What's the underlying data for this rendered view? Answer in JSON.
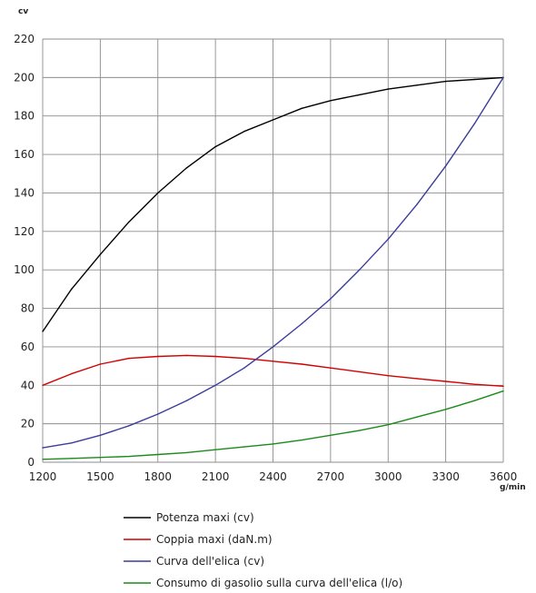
{
  "chart_data": {
    "type": "line",
    "ylabel": "cv",
    "xlabel": "g/min",
    "xlim": [
      1200,
      3600
    ],
    "ylim": [
      0,
      220
    ],
    "x_ticks": [
      1200,
      1500,
      1800,
      2100,
      2400,
      2700,
      3000,
      3300,
      3600
    ],
    "y_ticks": [
      0,
      20,
      40,
      60,
      80,
      100,
      120,
      140,
      160,
      180,
      200,
      220
    ],
    "grid": true,
    "legend_position": "bottom",
    "series": [
      {
        "name": "Potenza maxi (cv)",
        "color": "#000000",
        "points": [
          [
            1200,
            68
          ],
          [
            1350,
            90
          ],
          [
            1500,
            108
          ],
          [
            1650,
            125
          ],
          [
            1800,
            140
          ],
          [
            1950,
            153
          ],
          [
            2100,
            164
          ],
          [
            2250,
            172
          ],
          [
            2400,
            178
          ],
          [
            2550,
            184
          ],
          [
            2700,
            188
          ],
          [
            2850,
            191
          ],
          [
            3000,
            194
          ],
          [
            3150,
            196
          ],
          [
            3300,
            198
          ],
          [
            3450,
            199
          ],
          [
            3600,
            200
          ]
        ]
      },
      {
        "name": "Coppia maxi (daN.m)",
        "color": "#d40000",
        "points": [
          [
            1200,
            40
          ],
          [
            1350,
            46
          ],
          [
            1500,
            51
          ],
          [
            1650,
            54
          ],
          [
            1800,
            55
          ],
          [
            1950,
            55.5
          ],
          [
            2100,
            55
          ],
          [
            2250,
            54
          ],
          [
            2400,
            52.5
          ],
          [
            2550,
            51
          ],
          [
            2700,
            49
          ],
          [
            2850,
            47
          ],
          [
            3000,
            45
          ],
          [
            3150,
            43.5
          ],
          [
            3300,
            42
          ],
          [
            3450,
            40.5
          ],
          [
            3600,
            39.5
          ]
        ]
      },
      {
        "name": "Curva dell'elica (cv)",
        "color": "#3c3c9c",
        "points": [
          [
            1200,
            7.5
          ],
          [
            1350,
            10
          ],
          [
            1500,
            14
          ],
          [
            1650,
            19
          ],
          [
            1800,
            25
          ],
          [
            1950,
            32
          ],
          [
            2100,
            40
          ],
          [
            2250,
            49
          ],
          [
            2400,
            60
          ],
          [
            2550,
            72
          ],
          [
            2700,
            85
          ],
          [
            2850,
            100
          ],
          [
            3000,
            116
          ],
          [
            3150,
            134
          ],
          [
            3300,
            154
          ],
          [
            3450,
            176
          ],
          [
            3600,
            200
          ]
        ]
      },
      {
        "name": "Consumo di gasolio sulla curva dell'elica (l/o)",
        "color": "#1a8a1a",
        "points": [
          [
            1200,
            1.5
          ],
          [
            1350,
            2
          ],
          [
            1500,
            2.5
          ],
          [
            1650,
            3
          ],
          [
            1800,
            4
          ],
          [
            1950,
            5
          ],
          [
            2100,
            6.5
          ],
          [
            2250,
            8
          ],
          [
            2400,
            9.5
          ],
          [
            2550,
            11.5
          ],
          [
            2700,
            14
          ],
          [
            2850,
            16.5
          ],
          [
            3000,
            19.5
          ],
          [
            3150,
            23.5
          ],
          [
            3300,
            27.5
          ],
          [
            3450,
            32
          ],
          [
            3600,
            37
          ]
        ]
      }
    ]
  }
}
